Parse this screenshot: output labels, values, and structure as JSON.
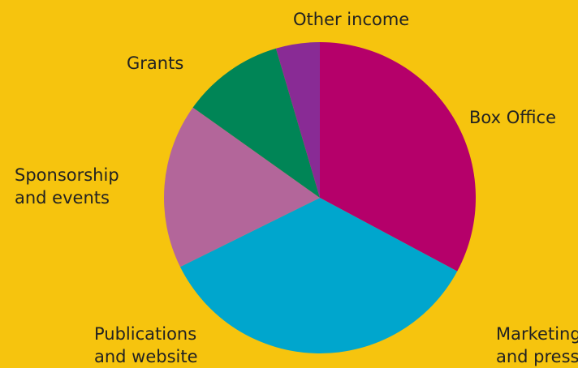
{
  "chart_data": {
    "type": "pie",
    "start_angle_deg": 0,
    "direction": "clockwise",
    "slices": [
      {
        "label": "Box Office",
        "value": 32.5,
        "color": "#b5006a"
      },
      {
        "label": "Marketing\nand press",
        "value": 34.5,
        "color": "#00a6cd"
      },
      {
        "label": "Publications\nand website",
        "value": 0.0,
        "color": "#00a6cd"
      },
      {
        "label": "Sponsorship\nand events",
        "value": 17.0,
        "color": "#b3669a"
      },
      {
        "label": "Grants",
        "value": 10.5,
        "color": "#008556"
      },
      {
        "label": "Other income",
        "value": 4.5,
        "color": "#892b95"
      }
    ]
  },
  "labels": {
    "other_income": "Other income",
    "grants": "Grants",
    "box_office": "Box Office",
    "sponsorship": "Sponsorship\nand events",
    "publications": "Publications\nand website",
    "marketing": "Marketing\nand press"
  }
}
